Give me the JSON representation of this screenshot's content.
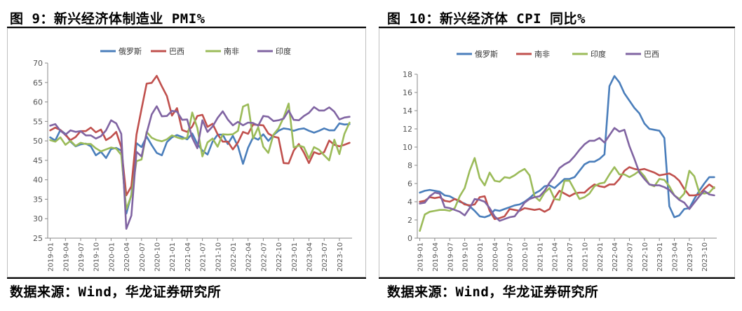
{
  "panels": [
    {
      "title": "图 9：新兴经济体制造业 PMI%",
      "source": "数据来源：Wind，华龙证券研究所"
    },
    {
      "title": "图 10：新兴经济体 CPI 同比%",
      "source": "数据来源：Wind，华龙证券研究所"
    }
  ],
  "chart_data": [
    {
      "type": "line",
      "title": "",
      "xlabel": "",
      "ylabel": "",
      "ylim": [
        25,
        70
      ],
      "yticks": [
        25,
        30,
        35,
        40,
        45,
        50,
        55,
        60,
        65,
        70
      ],
      "xtick_labels": [
        "2019-01",
        "2019-04",
        "2019-07",
        "2019-10",
        "2020-01",
        "2020-04",
        "2020-07",
        "2020-10",
        "2021-01",
        "2021-04",
        "2021-07",
        "2021-10",
        "2022-01",
        "2022-04",
        "2022-07",
        "2022-10",
        "2023-01",
        "2023-04",
        "2023-07",
        "2023-10"
      ],
      "legend_position": "top-center",
      "grid": false,
      "series": [
        {
          "name": "俄罗斯",
          "color": "#4a7ebb",
          "values": [
            50.9,
            50.1,
            52.8,
            51.8,
            49.8,
            48.6,
            49.1,
            49.3,
            48.6,
            46.3,
            47.2,
            45.6,
            47.9,
            48.2,
            47.5,
            31.3,
            36.2,
            49.4,
            48.4,
            51.1,
            48.9,
            46.9,
            46.3,
            49.7,
            50.9,
            51.5,
            51.0,
            50.4,
            51.9,
            49.2,
            47.5,
            46.5,
            49.8,
            51.6,
            51.6,
            49.2,
            51.3,
            48.6,
            44.1,
            48.2,
            50.9,
            50.3,
            51.7,
            50.0,
            51.5,
            52.6,
            53.2,
            53.0,
            52.6,
            53.0,
            53.2,
            52.6,
            52.1,
            52.6,
            53.2,
            52.7,
            52.7,
            54.5,
            54.2,
            54.3
          ]
        },
        {
          "name": "巴西",
          "color": "#c0504d",
          "values": [
            52.7,
            53.4,
            52.8,
            51.5,
            50.2,
            51.0,
            52.5,
            52.5,
            53.4,
            52.2,
            52.9,
            50.2,
            51.0,
            52.3,
            48.4,
            36.0,
            38.3,
            51.6,
            58.2,
            64.7,
            64.9,
            66.7,
            64.0,
            61.5,
            56.5,
            58.4,
            52.8,
            52.3,
            53.7,
            56.4,
            56.7,
            53.6,
            54.4,
            51.7,
            49.8,
            49.8,
            47.8,
            49.6,
            52.3,
            51.8,
            54.2,
            54.1,
            54.0,
            51.9,
            51.1,
            50.8,
            44.3,
            44.2,
            47.5,
            49.2,
            47.0,
            44.3,
            47.1,
            46.6,
            47.1,
            50.1,
            49.0,
            48.6,
            49.0,
            49.5
          ]
        },
        {
          "name": "南非",
          "color": "#9bbb59",
          "values": [
            50.2,
            49.8,
            50.9,
            49.0,
            50.0,
            48.7,
            49.5,
            49.2,
            49.2,
            48.1,
            47.3,
            47.8,
            48.3,
            48.0,
            46.4,
            32.4,
            36.0,
            44.8,
            45.2,
            52.3,
            50.8,
            50.2,
            49.9,
            50.4,
            51.4,
            50.9,
            50.5,
            50.8,
            57.3,
            53.3,
            46.0,
            49.6,
            50.6,
            48.5,
            51.7,
            51.6,
            51.7,
            52.6,
            58.8,
            59.4,
            50.6,
            53.5,
            48.5,
            46.9,
            51.6,
            53.2,
            56.0,
            59.6,
            48.3,
            48.8,
            48.4,
            45.5,
            48.4,
            47.7,
            46.3,
            45.0,
            50.3,
            46.6,
            51.8,
            54.7
          ]
        },
        {
          "name": "印度",
          "color": "#8064a2",
          "values": [
            53.9,
            54.3,
            52.6,
            51.6,
            52.7,
            52.3,
            52.5,
            51.4,
            51.4,
            50.6,
            51.2,
            52.7,
            55.3,
            54.5,
            51.8,
            27.4,
            30.8,
            47.2,
            46.0,
            52.0,
            56.8,
            58.9,
            56.3,
            56.4,
            57.7,
            57.5,
            55.4,
            55.5,
            50.8,
            48.1,
            55.3,
            52.3,
            53.7,
            55.9,
            57.6,
            55.5,
            54.0,
            54.9,
            54.0,
            54.7,
            54.6,
            53.9,
            56.4,
            56.2,
            55.1,
            55.3,
            55.7,
            57.8,
            55.4,
            55.3,
            56.4,
            57.2,
            58.7,
            57.8,
            57.8,
            58.6,
            57.5,
            55.5,
            56.0,
            56.2
          ]
        }
      ]
    },
    {
      "type": "line",
      "title": "",
      "xlabel": "",
      "ylabel": "",
      "ylim": [
        0,
        18
      ],
      "yticks": [
        0,
        2,
        4,
        6,
        8,
        10,
        12,
        14,
        16,
        18
      ],
      "xtick_labels": [
        "2019-01",
        "2019-04",
        "2019-07",
        "2019-10",
        "2020-01",
        "2020-04",
        "2020-07",
        "2020-10",
        "2021-01",
        "2021-04",
        "2021-07",
        "2021-10",
        "2022-01",
        "2022-04",
        "2022-07",
        "2022-10",
        "2023-01",
        "2023-04",
        "2023-07",
        "2023-10"
      ],
      "legend_position": "top-center",
      "grid": false,
      "series": [
        {
          "name": "俄罗斯",
          "color": "#4a7ebb",
          "values": [
            5.0,
            5.2,
            5.3,
            5.2,
            5.1,
            4.7,
            4.6,
            4.3,
            4.0,
            3.8,
            3.5,
            3.0,
            2.4,
            2.3,
            2.5,
            3.1,
            3.0,
            3.2,
            3.4,
            3.6,
            3.7,
            4.0,
            4.4,
            4.9,
            5.2,
            5.7,
            5.8,
            5.5,
            6.0,
            6.5,
            6.5,
            6.7,
            7.4,
            8.1,
            8.4,
            8.4,
            8.7,
            9.2,
            16.7,
            17.8,
            17.1,
            15.9,
            15.1,
            14.3,
            13.7,
            12.6,
            12.0,
            11.9,
            11.8,
            11.0,
            3.5,
            2.3,
            2.5,
            3.2,
            3.3,
            4.3,
            5.2,
            6.0,
            6.7,
            6.7
          ]
        },
        {
          "name": "南非",
          "color": "#c0504d",
          "values": [
            4.0,
            4.1,
            4.5,
            4.4,
            4.5,
            4.1,
            4.0,
            4.3,
            4.1,
            3.7,
            3.6,
            3.7,
            4.5,
            4.6,
            3.0,
            2.1,
            2.2,
            2.4,
            3.2,
            3.1,
            3.0,
            3.3,
            3.2,
            3.1,
            3.2,
            2.9,
            3.2,
            4.4,
            5.2,
            4.9,
            4.6,
            4.9,
            5.0,
            5.0,
            5.5,
            5.9,
            5.7,
            5.6,
            5.9,
            5.9,
            6.5,
            7.4,
            7.8,
            7.6,
            7.5,
            7.6,
            7.4,
            7.2,
            6.9,
            7.0,
            7.1,
            6.8,
            6.3,
            5.4,
            4.7,
            4.7,
            4.8,
            5.4,
            5.9,
            5.5
          ]
        },
        {
          "name": "印度",
          "color": "#9bbb59",
          "values": [
            0.8,
            2.6,
            2.9,
            3.0,
            3.1,
            3.1,
            3.0,
            3.3,
            4.6,
            5.5,
            7.4,
            8.8,
            6.6,
            5.8,
            7.2,
            6.3,
            6.2,
            6.7,
            6.6,
            6.9,
            7.3,
            7.6,
            6.9,
            4.6,
            4.1,
            5.0,
            5.5,
            4.3,
            4.2,
            6.3,
            6.3,
            5.3,
            4.3,
            4.5,
            4.9,
            5.7,
            6.0,
            6.1,
            7.0,
            7.8,
            7.0,
            7.0,
            6.7,
            7.0,
            7.4,
            6.8,
            5.9,
            5.7,
            6.5,
            6.4,
            5.7,
            4.7,
            4.3,
            4.9,
            7.4,
            6.8,
            5.0,
            4.9,
            5.0,
            5.6
          ]
        },
        {
          "name": "巴西",
          "color": "#8064a2",
          "values": [
            3.8,
            3.9,
            4.6,
            5.0,
            4.9,
            3.4,
            3.3,
            3.1,
            2.9,
            2.5,
            3.3,
            4.3,
            4.2,
            4.0,
            3.3,
            2.4,
            1.9,
            2.1,
            2.3,
            2.4,
            3.1,
            3.9,
            4.3,
            4.5,
            4.6,
            5.2,
            6.1,
            6.8,
            7.7,
            8.1,
            8.4,
            9.0,
            9.7,
            10.3,
            10.7,
            10.7,
            11.0,
            10.5,
            11.3,
            12.1,
            11.7,
            11.9,
            10.1,
            8.7,
            7.2,
            6.5,
            5.9,
            5.8,
            5.8,
            5.6,
            5.3,
            4.7,
            4.2,
            3.9,
            3.2,
            3.9,
            4.6,
            5.2,
            4.8,
            4.7
          ]
        }
      ]
    }
  ]
}
